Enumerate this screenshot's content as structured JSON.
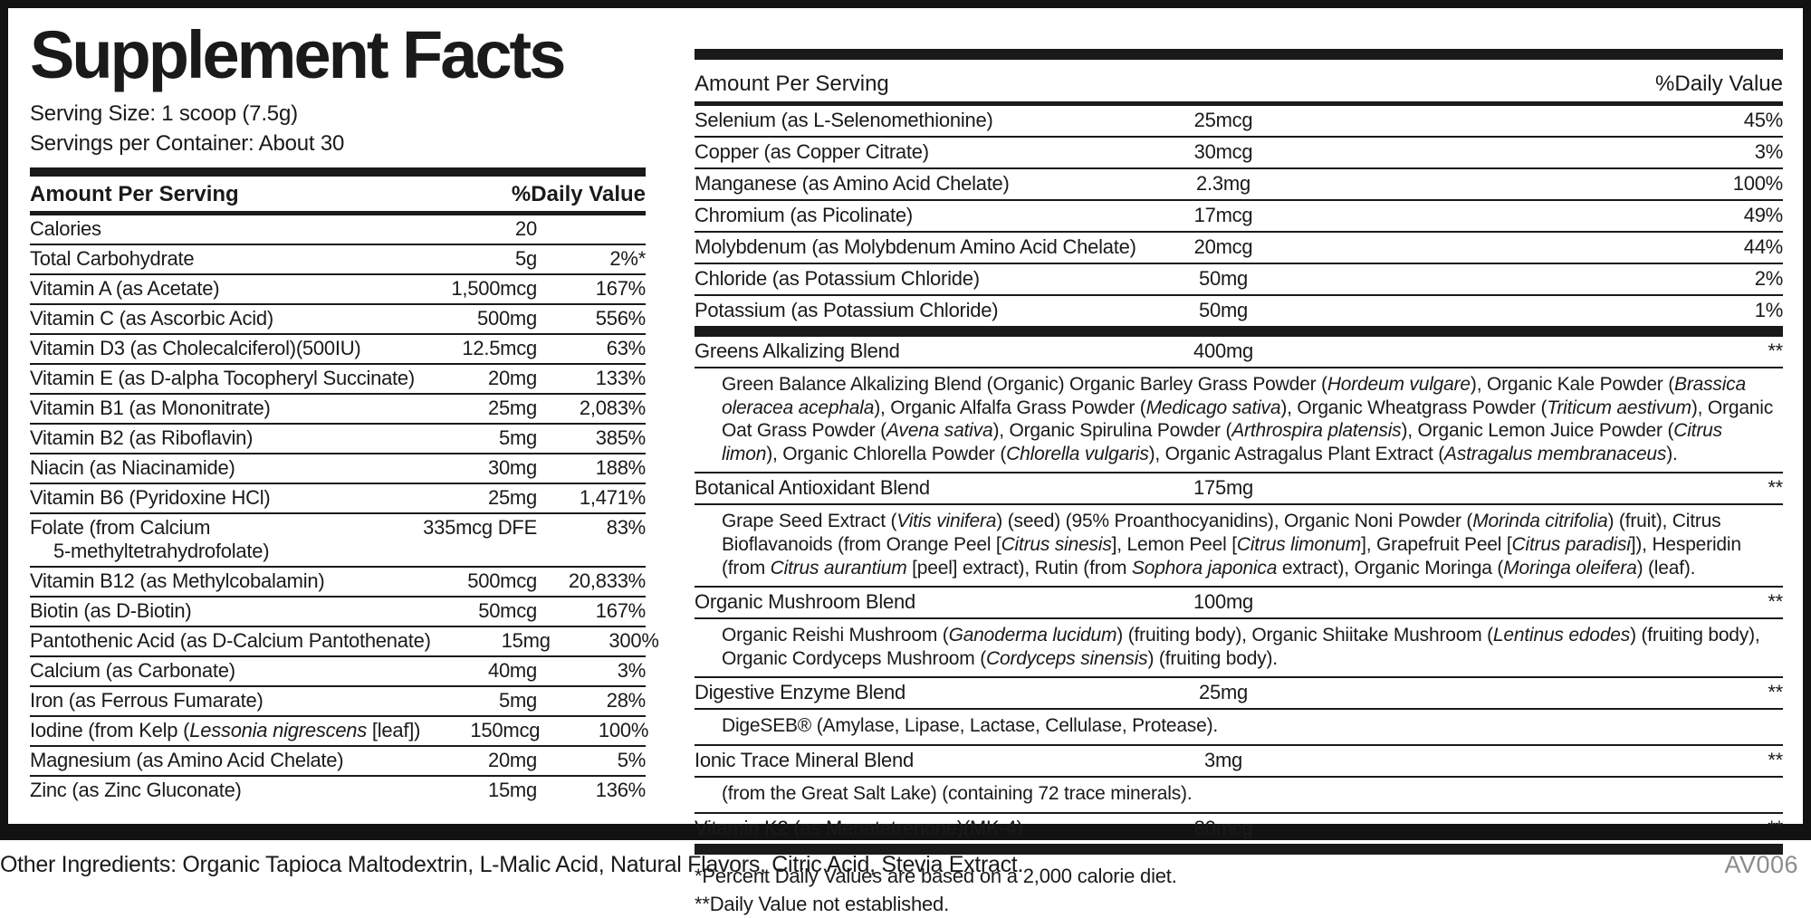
{
  "label": {
    "title": "Supplement Facts",
    "serving_size": "Serving Size: 1 scoop (7.5g)",
    "servings_per_container": "Servings per Container: About 30",
    "columns": {
      "amount_header": "Amount Per Serving",
      "dv_header": "%Daily Value"
    },
    "footnotes": [
      "*Percent Daily Values are based on a 2,000 calorie diet.",
      "**Daily Value not established."
    ],
    "other_ingredients": "Other Ingredients: Organic Tapioca Maltodextrin, L-Malic Acid, Natural Flavors, Citric Acid, Stevia Extract.",
    "code": "AV006",
    "colors": {
      "ink": "#1a1a1a",
      "code_gray": "#8c8c8c",
      "background": "#ffffff"
    }
  },
  "left_table": {
    "rows": [
      {
        "name": "Calories",
        "amount": "20",
        "dv": ""
      },
      {
        "name": "Total Carbohydrate",
        "amount": "5g",
        "dv": "2%*"
      },
      {
        "name": "Vitamin A (as Acetate)",
        "amount": "1,500mcg",
        "dv": "167%"
      },
      {
        "name": "Vitamin C (as Ascorbic Acid)",
        "amount": "500mg",
        "dv": "556%"
      },
      {
        "name": "Vitamin D3 (as Cholecalciferol)(500IU)",
        "amount": "12.5mcg",
        "dv": "63%"
      },
      {
        "name": "Vitamin E (as D-alpha Tocopheryl Succinate)",
        "amount": "20mg",
        "dv": "133%"
      },
      {
        "name": "Vitamin B1 (as Mononitrate)",
        "amount": "25mg",
        "dv": "2,083%"
      },
      {
        "name": "Vitamin B2 (as Riboflavin)",
        "amount": "5mg",
        "dv": "385%"
      },
      {
        "name": "Niacin (as Niacinamide)",
        "amount": "30mg",
        "dv": "188%"
      },
      {
        "name": "Vitamin B6 (Pyridoxine HCl)",
        "amount": "25mg",
        "dv": "1,471%"
      },
      {
        "name": "Folate (from Calcium",
        "name2": "5-methyltetrahydrofolate)",
        "amount": "335mcg DFE",
        "dv": "83%"
      },
      {
        "name": "Vitamin B12 (as Methylcobalamin)",
        "amount": "500mcg",
        "dv": "20,833%"
      },
      {
        "name": "Biotin (as D-Biotin)",
        "amount": "50mcg",
        "dv": "167%"
      },
      {
        "name": "Pantothenic Acid (as D-Calcium Pantothenate)",
        "amount": "15mg",
        "dv": "300%"
      },
      {
        "name": "Calcium (as Carbonate)",
        "amount": "40mg",
        "dv": "3%"
      },
      {
        "name": "Iron (as Ferrous Fumarate)",
        "amount": "5mg",
        "dv": "28%"
      },
      {
        "name": "Iodine (from Kelp ({i}Lessonia nigrescens{/i} [leaf])",
        "amount": "150mcg",
        "dv": "100%"
      },
      {
        "name": "Magnesium (as Amino Acid Chelate)",
        "amount": "20mg",
        "dv": "5%"
      },
      {
        "name": "Zinc (as Zinc Gluconate)",
        "amount": "15mg",
        "dv": "136%"
      }
    ]
  },
  "right_table": {
    "rows": [
      {
        "name": "Selenium (as L-Selenomethionine)",
        "amount": "25mcg",
        "dv": "45%"
      },
      {
        "name": "Copper (as Copper Citrate)",
        "amount": "30mcg",
        "dv": "3%"
      },
      {
        "name": "Manganese (as Amino Acid Chelate)",
        "amount": "2.3mg",
        "dv": "100%"
      },
      {
        "name": "Chromium (as Picolinate)",
        "amount": "17mcg",
        "dv": "49%"
      },
      {
        "name": "Molybdenum (as Molybdenum Amino Acid Chelate)",
        "amount": "20mcg",
        "dv": "44%"
      },
      {
        "name": "Chloride (as Potassium Chloride)",
        "amount": "50mg",
        "dv": "2%"
      },
      {
        "name": "Potassium (as Potassium Chloride)",
        "amount": "50mg",
        "dv": "1%"
      }
    ],
    "blends": [
      {
        "name": "Greens Alkalizing Blend",
        "amount": "400mg",
        "dv": "**",
        "desc": "Green Balance Alkalizing Blend (Organic) Organic Barley Grass Powder ({i}Hordeum vulgare{/i}), Organic Kale Powder ({i}Brassica oleracea acephala{/i}), Organic Alfalfa Grass Powder ({i}Medicago sativa{/i}), Organic Wheatgrass Powder ({i}Triticum aestivum{/i}), Organic Oat Grass Powder ({i}Avena sativa{/i}), Organic Spirulina Powder ({i}Arthrospira platensis{/i}), Organic Lemon Juice Powder ({i}Citrus limon{/i}), Organic Chlorella Powder ({i}Chlorella vulgaris{/i}), Organic Astragalus Plant Extract ({i}Astragalus membranaceus{/i})."
      },
      {
        "name": "Botanical Antioxidant Blend",
        "amount": "175mg",
        "dv": "**",
        "desc": "Grape Seed Extract ({i}Vitis vinifera{/i}) (seed) (95% Proanthocyanidins), Organic Noni Powder ({i}Morinda citrifolia{/i}) (fruit), Citrus Bioflavanoids (from Orange Peel [{i}Citrus sinesis{/i}], Lemon Peel [{i}Citrus limonum{/i}], Grapefruit Peel [{i}Citrus paradisi{/i}]), Hesperidin (from {i}Citrus aurantium{/i} [peel] extract), Rutin (from {i}Sophora japonica{/i} extract), Organic Moringa ({i}Moringa oleifera{/i}) (leaf)."
      },
      {
        "name": "Organic Mushroom Blend",
        "amount": "100mg",
        "dv": "**",
        "desc": "Organic Reishi Mushroom ({i}Ganoderma lucidum{/i}) (fruiting body), Organic Shiitake Mushroom ({i}Lentinus edodes{/i}) (fruiting body), Organic Cordyceps Mushroom ({i}Cordyceps sinensis{/i}) (fruiting body)."
      },
      {
        "name": "Digestive Enzyme Blend",
        "amount": "25mg",
        "dv": "**",
        "desc": "DigeSEB® (Amylase, Lipase, Lactase, Cellulase, Protease)."
      },
      {
        "name": "Ionic Trace Mineral Blend",
        "amount": "3mg",
        "dv": "**",
        "desc": "(from the Great Salt Lake) (containing 72 trace minerals)."
      },
      {
        "name": "Vitamin K2 (as Menatetrenone)(MK-4)",
        "amount": "80mcg",
        "dv": "**"
      }
    ]
  }
}
